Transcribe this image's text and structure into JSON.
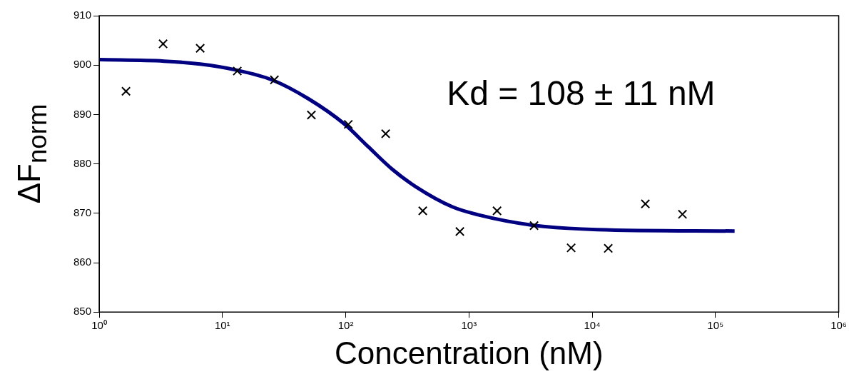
{
  "chart_data": {
    "type": "scatter",
    "xlabel": "Concentration (nM)",
    "ylabel": "ΔF$_{norm}$",
    "log": "x",
    "xlim": [
      1,
      1000000
    ],
    "xticks": [
      {
        "value": 1,
        "label": "10⁰"
      },
      {
        "value": 10,
        "label": "10¹"
      },
      {
        "value": 100,
        "label": "10²"
      },
      {
        "value": 1000,
        "label": "10³"
      },
      {
        "value": 10000,
        "label": "10⁴"
      },
      {
        "value": 100000,
        "label": "10⁵"
      },
      {
        "value": 1000000,
        "label": "10⁶"
      }
    ],
    "ylim": [
      850,
      910
    ],
    "yticks": [
      850,
      860,
      870,
      880,
      890,
      900,
      910
    ],
    "grid": false,
    "legend": false,
    "annotations": [
      "Kd = 108 ± 11 nM"
    ],
    "series": [
      {
        "marker": "cross",
        "color": "#000000",
        "x": [
          1.65,
          3.3,
          6.6,
          13.2,
          26.4,
          52.7,
          105,
          211,
          422,
          844,
          1690,
          3375,
          6750,
          13500,
          27000,
          54000
        ],
        "values": [
          894.7,
          904.3,
          903.4,
          898.8,
          897.0,
          889.9,
          888.0,
          886.1,
          870.5,
          866.3,
          870.5,
          867.5,
          863.0,
          862.9,
          871.9,
          869.8
        ]
      },
      {
        "type": "line",
        "marker": "none",
        "line_style": "solid",
        "color": "#000080",
        "x": [
          1,
          3.36,
          6.59,
          12.9,
          25.3,
          49.7,
          97.3,
          152,
          239,
          374,
          733,
          1183,
          3260,
          11000,
          143000
        ],
        "values": [
          901.1,
          900.8,
          900.2,
          899.0,
          897.0,
          893.2,
          888.1,
          883.5,
          878.9,
          875.3,
          871.3,
          869.7,
          867.6,
          866.7,
          866.4
        ]
      }
    ]
  }
}
